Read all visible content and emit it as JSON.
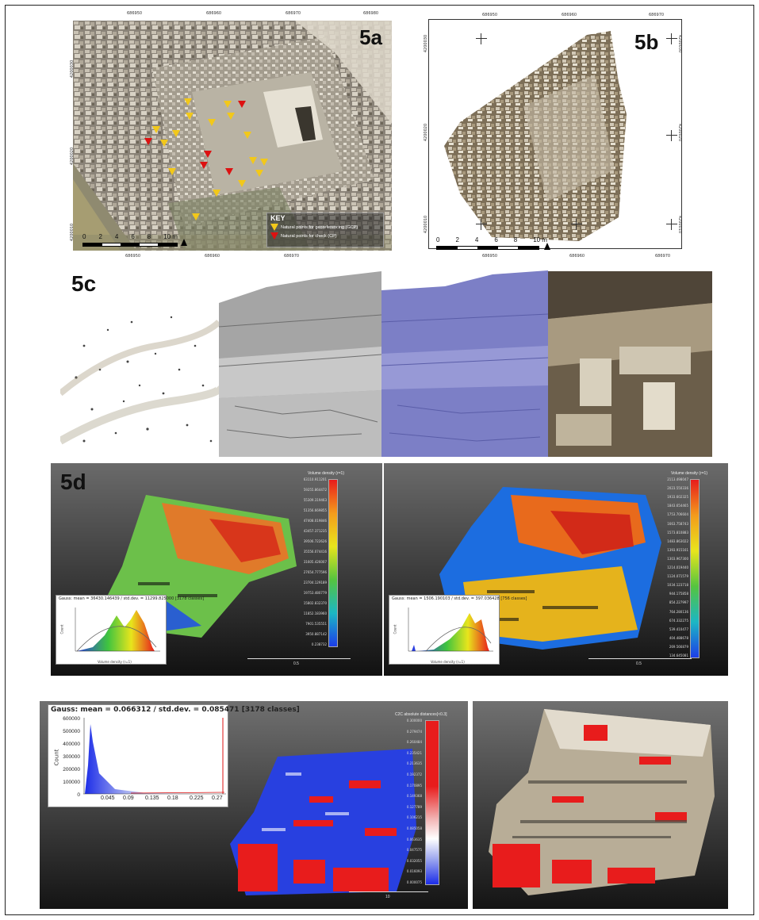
{
  "panels": {
    "a": {
      "label": "5a",
      "top_ticks": [
        "686950",
        "686960",
        "686970",
        "686980"
      ],
      "bottom_ticks": [
        "686950",
        "686960",
        "686970"
      ],
      "left_ticks": [
        "4200030",
        "4200020",
        "4200010"
      ],
      "scale_labels": [
        "0",
        "2",
        "4",
        "6",
        "8",
        "10 m"
      ],
      "legend": {
        "title": "KEY",
        "gcp": "Natural points for georeferencing (GCP)",
        "cp": "Natural points for check (CP)"
      }
    },
    "b": {
      "label": "5b",
      "top_ticks": [
        "686950",
        "686960",
        "686970"
      ],
      "bottom_ticks": [
        "686950",
        "686960",
        "686970"
      ],
      "left_ticks": [
        "4200030",
        "4200020",
        "4200010"
      ],
      "right_ticks": [
        "4200030",
        "4200020",
        "4200010"
      ],
      "scale_labels": [
        "0",
        "2",
        "4",
        "6",
        "8",
        "10 m"
      ]
    },
    "c": {
      "label": "5c"
    },
    "d": {
      "label": "5d",
      "left": {
        "legend_title": "Volume density (r=1)",
        "legend_values": [
          "63110.911201",
          "59255.864472",
          "55309.319463",
          "51356.669855",
          "47408.019846",
          "43457.371235",
          "39506.722626",
          "35556.074416",
          "31605.426007",
          "27654.777596",
          "23704.129189",
          "19753.480779",
          "15802.832370",
          "11852.183960",
          "7901.535551",
          "3950.887142",
          "0.238732"
        ],
        "hist_title": "Gauss: mean = 36430.146439 / std.dev. = 11299.825000 [3178 classes]",
        "hist_yticks": [
          "8000",
          "7000",
          "6000",
          "5000",
          "4000",
          "3000",
          "2000",
          "1000",
          "0"
        ],
        "hist_xticks": [
          "10000",
          "20000",
          "30000",
          "40000",
          "50000",
          "60000"
        ],
        "hist_ylabel": "Count",
        "hist_xlabel": "Volume density (r=1)",
        "scale_value": "0.5"
      },
      "right": {
        "legend_title": "Volume density (r=1)",
        "legend_values": [
          "2113.498047",
          "2023.550336",
          "1933.602325",
          "1843.654465",
          "1753.706604",
          "1663.758743",
          "1573.810883",
          "1483.863022",
          "1393.915161",
          "1303.967300",
          "1214.019440",
          "1124.071579",
          "1034.123718",
          "944.175858",
          "854.227997",
          "764.280136",
          "674.332275",
          "539.410477",
          "404.488678",
          "269.566879",
          "134.645081"
        ],
        "hist_title": "Gauss: mean = 1506.190103 / std.dev. = 397.036428 [756 classes]",
        "hist_yticks": [
          "350",
          "300",
          "250",
          "200",
          "150",
          "100",
          "50",
          "0"
        ],
        "hist_xticks": [
          "500",
          "1000",
          "1500",
          "2000"
        ],
        "hist_ylabel": "Count",
        "hist_xlabel": "Volume density (r=1)",
        "scale_value": "0.5"
      }
    },
    "e": {
      "hist_title": "Gauss: mean = 0.066312 / std.dev. = 0.085471 [3178 classes]",
      "hist_yticks": [
        "600000",
        "500000",
        "400000",
        "300000",
        "200000",
        "100000",
        "0"
      ],
      "hist_xticks": [
        "0.045",
        "0.09",
        "0.135",
        "0.18",
        "0.225",
        "0.27"
      ],
      "hist_ylabel": "Count",
      "legend_title": "C2C absolute distances[<0.3]",
      "legend_values": [
        "0.300000",
        "0.279474",
        "0.260484",
        "0.235421",
        "0.213635",
        "0.192372",
        "0.170895",
        "0.149368",
        "0.127789",
        "0.106215",
        "0.085058",
        "0.063635",
        "0.047575",
        "0.032055",
        "0.016093",
        "0.000075"
      ],
      "scale_value": "10"
    }
  },
  "colors": {
    "gcp": "#f2c81a",
    "cp": "#d11111"
  }
}
